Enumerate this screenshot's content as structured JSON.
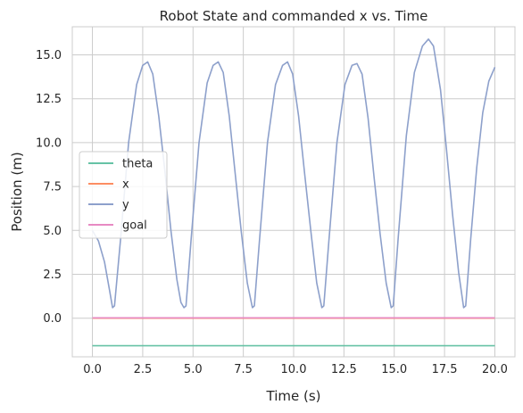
{
  "chart_data": {
    "type": "line",
    "title": "Robot State and commanded x vs. Time",
    "xlabel": "Time (s)",
    "ylabel": "Position (m)",
    "xlim": [
      -1.0,
      21.0
    ],
    "ylim": [
      -2.2,
      16.6
    ],
    "xticks": [
      0.0,
      2.5,
      5.0,
      7.5,
      10.0,
      12.5,
      15.0,
      17.5,
      20.0
    ],
    "xtick_labels": [
      "0.0",
      "2.5",
      "5.0",
      "7.5",
      "10.0",
      "12.5",
      "15.0",
      "17.5",
      "20.0"
    ],
    "yticks": [
      0.0,
      2.5,
      5.0,
      7.5,
      10.0,
      12.5,
      15.0
    ],
    "ytick_labels": [
      "0.0",
      "2.5",
      "5.0",
      "7.5",
      "10.0",
      "12.5",
      "15.0"
    ],
    "grid": true,
    "legend_position": "center-left",
    "series": [
      {
        "name": "theta",
        "color": "#66c2a5",
        "x": [
          0,
          20
        ],
        "y": [
          -1.57,
          -1.57
        ]
      },
      {
        "name": "x",
        "color": "#fc8d62",
        "x": [
          0,
          20
        ],
        "y": [
          0.0,
          0.0
        ]
      },
      {
        "name": "y",
        "color": "#8da0cb",
        "x": [
          0.0,
          0.3,
          0.6,
          0.85,
          1.0,
          1.1,
          1.4,
          1.8,
          2.2,
          2.5,
          2.75,
          3.0,
          3.3,
          3.6,
          3.9,
          4.2,
          4.4,
          4.55,
          4.65,
          4.9,
          5.3,
          5.7,
          6.0,
          6.25,
          6.5,
          6.8,
          7.1,
          7.4,
          7.7,
          7.95,
          8.05,
          8.3,
          8.7,
          9.1,
          9.45,
          9.7,
          9.95,
          10.25,
          10.55,
          10.85,
          11.15,
          11.4,
          11.5,
          11.75,
          12.15,
          12.55,
          12.9,
          13.15,
          13.4,
          13.7,
          14.0,
          14.3,
          14.6,
          14.85,
          14.95,
          15.2,
          15.6,
          16.0,
          16.4,
          16.7,
          16.95,
          17.3,
          17.6,
          17.9,
          18.2,
          18.45,
          18.55,
          18.8,
          19.1,
          19.4,
          19.7,
          20.0
        ],
        "y": [
          5.0,
          4.4,
          3.2,
          1.6,
          0.6,
          0.7,
          4.5,
          10.0,
          13.3,
          14.4,
          14.6,
          13.9,
          11.5,
          8.4,
          5.0,
          2.2,
          0.9,
          0.6,
          0.7,
          4.4,
          10.0,
          13.4,
          14.4,
          14.6,
          14.0,
          11.5,
          8.2,
          4.9,
          2.0,
          0.6,
          0.7,
          4.4,
          10.0,
          13.3,
          14.4,
          14.6,
          13.9,
          11.5,
          8.2,
          5.0,
          2.0,
          0.6,
          0.7,
          4.4,
          10.0,
          13.3,
          14.4,
          14.5,
          13.9,
          11.4,
          8.0,
          4.8,
          2.0,
          0.6,
          0.7,
          4.6,
          10.4,
          14.0,
          15.5,
          15.9,
          15.5,
          13.0,
          9.6,
          5.9,
          2.6,
          0.6,
          0.7,
          4.5,
          8.6,
          11.7,
          13.5,
          14.3
        ]
      },
      {
        "name": "goal",
        "color": "#e78ac3",
        "x": [
          0,
          20
        ],
        "y": [
          0.02,
          0.02
        ]
      }
    ]
  }
}
